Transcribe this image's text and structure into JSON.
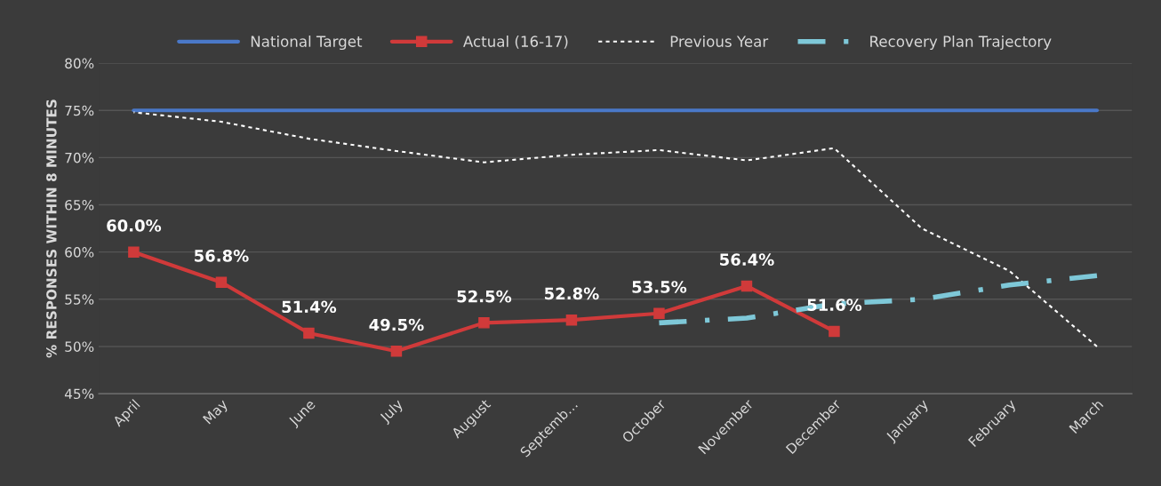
{
  "chart_data": {
    "type": "line",
    "ylabel": "% RESPONSES WITHIN 8 MINUTES",
    "categories": [
      "April",
      "May",
      "June",
      "July",
      "August",
      "Septemb…",
      "October",
      "November",
      "December",
      "January",
      "February",
      "March"
    ],
    "series": [
      {
        "name": "National Target",
        "color": "#4a78c8",
        "line_style": "solid",
        "marker": "none",
        "values": [
          75,
          75,
          75,
          75,
          75,
          75,
          75,
          75,
          75,
          75,
          75,
          75
        ]
      },
      {
        "name": "Actual (16-17)",
        "color": "#d03a3a",
        "line_style": "solid",
        "marker": "square",
        "values": [
          60.0,
          56.8,
          51.4,
          49.5,
          52.5,
          52.8,
          53.5,
          56.4,
          51.6,
          null,
          null,
          null
        ],
        "value_labels": [
          "60.0%",
          "56.8%",
          "51.4%",
          "49.5%",
          "52.5%",
          "52.8%",
          "53.5%",
          "56.4%",
          "51.6%",
          null,
          null,
          null
        ]
      },
      {
        "name": "Previous Year",
        "color": "#ffffff",
        "line_style": "dashed",
        "marker": "none",
        "values": [
          74.8,
          73.8,
          72,
          70.7,
          69.5,
          70.3,
          70.8,
          69.7,
          71,
          62.5,
          58,
          50
        ]
      },
      {
        "name": "Recovery Plan Trajectory",
        "color": "#7ec8d8",
        "line_style": "dashdot",
        "marker": "none",
        "values": [
          null,
          null,
          null,
          null,
          null,
          null,
          52.5,
          53,
          54.5,
          55,
          56.5,
          57.5
        ]
      }
    ],
    "ylim": [
      45,
      80
    ],
    "yticks": [
      {
        "value": 45,
        "label": "45%"
      },
      {
        "value": 50,
        "label": "50%"
      },
      {
        "value": 55,
        "label": "55%"
      },
      {
        "value": 60,
        "label": "60%"
      },
      {
        "value": 65,
        "label": "65%"
      },
      {
        "value": 70,
        "label": "70%"
      },
      {
        "value": 75,
        "label": "75%"
      },
      {
        "value": 80,
        "label": "80%"
      }
    ],
    "grid": "y",
    "legend": "top"
  }
}
